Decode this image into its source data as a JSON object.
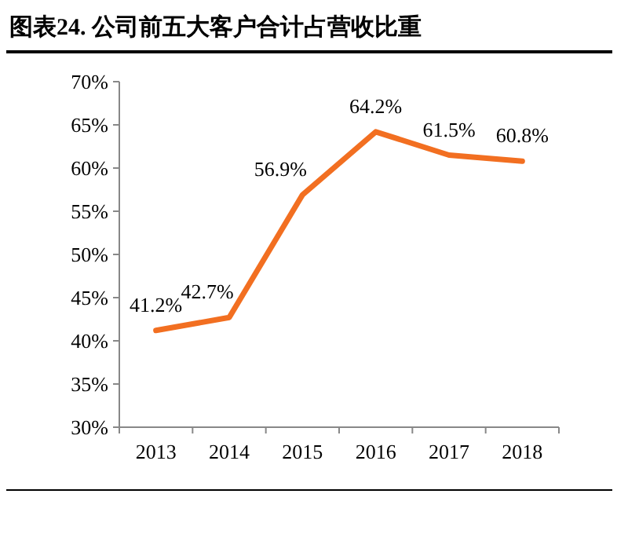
{
  "chart_data": {
    "type": "line",
    "title": "图表24.  公司前五大客户合计占营收比重",
    "categories": [
      "2013",
      "2014",
      "2015",
      "2016",
      "2017",
      "2018"
    ],
    "series": [
      {
        "color": "#f26f21",
        "values": [
          41.2,
          42.7,
          56.9,
          64.2,
          61.5,
          60.8
        ]
      }
    ],
    "ylim": [
      30,
      70
    ],
    "yticks": [
      {
        "value": 30,
        "label": "30%"
      },
      {
        "value": 35,
        "label": "35%"
      },
      {
        "value": 40,
        "label": "40%"
      },
      {
        "value": 45,
        "label": "45%"
      },
      {
        "value": 50,
        "label": "50%"
      },
      {
        "value": 55,
        "label": "55%"
      },
      {
        "value": 60,
        "label": "60%"
      },
      {
        "value": 65,
        "label": "65%"
      },
      {
        "value": 70,
        "label": "70%"
      }
    ],
    "value_labels": [
      "41.2%",
      "42.7%",
      "56.9%",
      "64.2%",
      "61.5%",
      "60.8%"
    ],
    "marker": "none",
    "line_style": "solid"
  }
}
